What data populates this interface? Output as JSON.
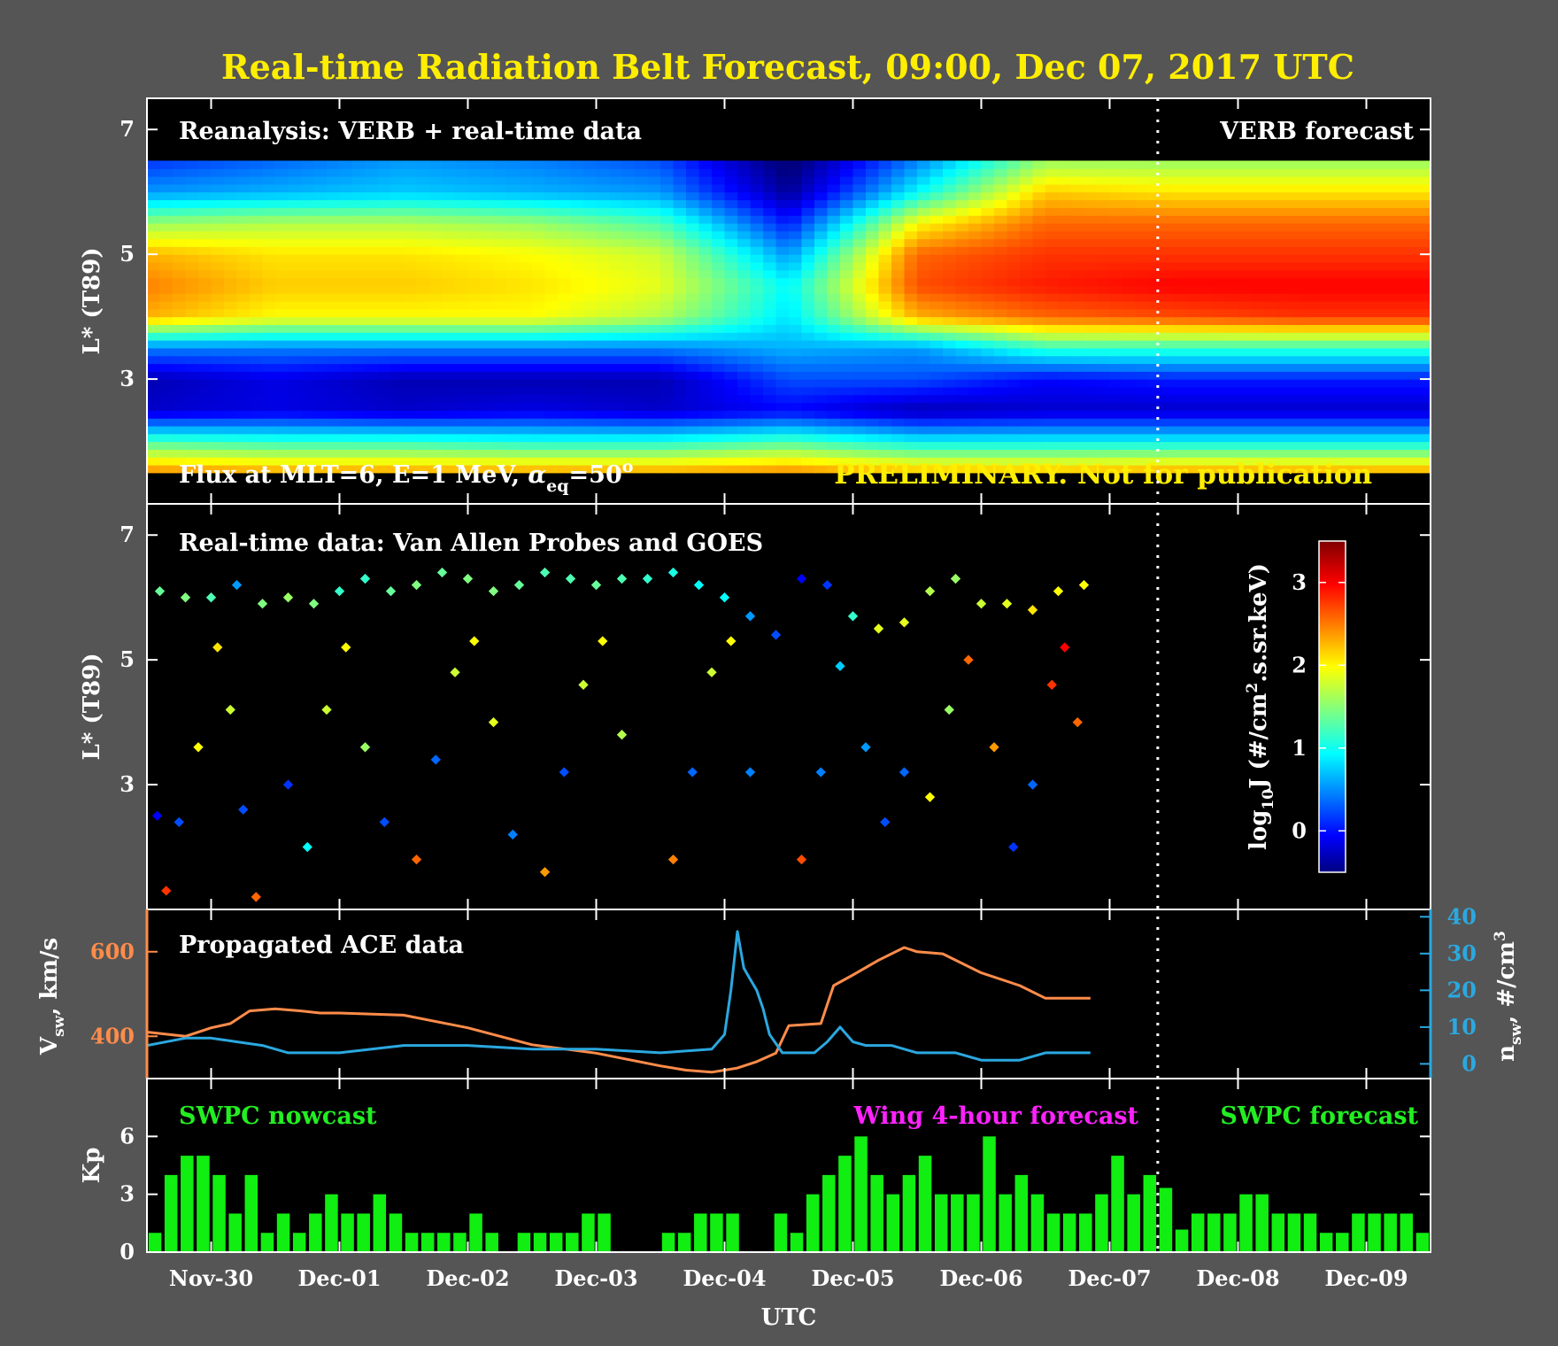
{
  "title": "Real-time Radiation Belt Forecast, 09:00, Dec 07, 2017 UTC",
  "colors": {
    "background": "#555555",
    "title": "#ffee00",
    "vsw": "#ff8c4a",
    "nsw": "#2ba8e0",
    "kp": "#11ee11",
    "wing": "#ff22ff",
    "prelim": "#ffee00"
  },
  "x_axis": {
    "label": "UTC",
    "ticks": [
      "Nov-30",
      "Dec-01",
      "Dec-02",
      "Dec-03",
      "Dec-04",
      "Dec-05",
      "Dec-06",
      "Dec-07",
      "Dec-08",
      "Dec-09"
    ],
    "range": [
      "2017-11-29T12:00",
      "2017-12-09T12:00"
    ],
    "now": "2017-12-07T09:00"
  },
  "panels": {
    "reanalysis": {
      "label": "Reanalysis: VERB + real-time data",
      "forecast_label": "VERB forecast",
      "flux_label": {
        "prefix": "Flux at MLT=6, E=1 MeV,  ",
        "symbol": "α",
        "sub": "eq",
        "value": "=50",
        "sup": "o"
      },
      "preliminary": "PRELIMINARY. Not for publication",
      "ylabel": "L* (T89)",
      "yticks": [
        "3",
        "5",
        "7"
      ],
      "ylim": [
        1.0,
        7.5
      ]
    },
    "realtime": {
      "label": "Real-time data: Van Allen Probes and GOES",
      "ylabel": "L* (T89)",
      "yticks": [
        "3",
        "5",
        "7"
      ],
      "ylim": [
        1.0,
        7.5
      ],
      "colorbar": {
        "label": {
          "a": "log",
          "a_sub": "10",
          "b": "J (#/cm",
          "b_sup": "2",
          "c": ".s.sr.keV)"
        },
        "ticks": [
          "0",
          "1",
          "2",
          "3"
        ],
        "range": [
          -0.5,
          3.5
        ]
      }
    },
    "ace": {
      "label": "Propagated ACE data",
      "left_label": {
        "a": "V",
        "sub": "sw",
        "b": ", km/s"
      },
      "right_label": {
        "a": "n",
        "sub": "sw",
        "b": ", #/cm",
        "sup": "3"
      },
      "left_ticks": [
        "400",
        "600"
      ],
      "right_ticks": [
        "0",
        "10",
        "20",
        "30",
        "40"
      ]
    },
    "kp": {
      "ylabel": "Kp",
      "yticks": [
        "0",
        "3",
        "6"
      ],
      "ylim": [
        0,
        9
      ],
      "nowcast_label": "SWPC nowcast",
      "wing_label": "Wing 4-hour forecast",
      "forecast_label": "SWPC forecast"
    }
  },
  "chart_data": [
    {
      "type": "heatmap",
      "name": "reanalysis",
      "x_range": [
        "2017-11-29T12:00",
        "2017-12-09T12:00"
      ],
      "ylim": [
        1.0,
        7.5
      ],
      "z_range": [
        -0.5,
        3.5
      ],
      "l_star_grid": [
        1.5,
        2.0,
        2.5,
        3.0,
        3.5,
        4.0,
        4.5,
        5.0,
        5.5,
        6.0,
        6.5
      ],
      "time_days": [
        0,
        1,
        2,
        3,
        4,
        5,
        6,
        7,
        8,
        9,
        10
      ],
      "log_flux": [
        [
          2.5,
          2.4,
          2.4,
          2.4,
          2.4,
          2.5,
          2.3,
          2.3,
          2.4,
          2.4,
          2.4
        ],
        [
          1.3,
          1.2,
          1.2,
          1.1,
          1.1,
          1.3,
          1.0,
          1.0,
          1.0,
          1.0,
          1.0
        ],
        [
          -0.2,
          -0.1,
          -0.2,
          -0.1,
          -0.2,
          0.0,
          -0.3,
          -0.2,
          -0.2,
          -0.2,
          -0.2
        ],
        [
          -0.3,
          -0.1,
          -0.3,
          -0.3,
          -0.3,
          0.3,
          0.3,
          0.0,
          0.1,
          0.1,
          0.1
        ],
        [
          0.5,
          0.5,
          0.5,
          0.5,
          0.5,
          0.7,
          0.6,
          1.2,
          1.2,
          1.2,
          1.2
        ],
        [
          2.3,
          2.0,
          2.0,
          2.0,
          1.7,
          0.9,
          2.3,
          2.6,
          2.7,
          2.8,
          2.8
        ],
        [
          2.5,
          2.2,
          2.2,
          2.1,
          1.9,
          1.0,
          2.7,
          2.9,
          3.0,
          3.0,
          3.0
        ],
        [
          2.3,
          2.1,
          2.1,
          2.0,
          1.8,
          0.6,
          2.6,
          2.8,
          2.8,
          2.8,
          2.8
        ],
        [
          1.6,
          1.7,
          1.7,
          1.6,
          1.3,
          0.1,
          2.0,
          2.6,
          2.6,
          2.6,
          2.6
        ],
        [
          0.6,
          0.7,
          0.8,
          0.7,
          0.6,
          -0.4,
          1.0,
          2.2,
          2.1,
          2.1,
          2.1
        ],
        [
          0.2,
          0.4,
          0.6,
          0.5,
          0.3,
          -0.6,
          0.5,
          1.6,
          1.6,
          1.6,
          1.6
        ]
      ]
    },
    {
      "type": "scatter",
      "name": "Van Allen Probes and GOES",
      "x_range": [
        "2017-11-29T12:00",
        "2017-12-09T12:00"
      ],
      "ylim": [
        1.0,
        7.5
      ],
      "z_range": [
        -0.5,
        3.5
      ],
      "goes": {
        "time_days": [
          0.1,
          0.3,
          0.5,
          0.7,
          0.9,
          1.1,
          1.3,
          1.5,
          1.7,
          1.9,
          2.1,
          2.3,
          2.5,
          2.7,
          2.9,
          3.1,
          3.3,
          3.5,
          3.7,
          3.9,
          4.1,
          4.3,
          4.5,
          4.7,
          4.9,
          5.1,
          5.3,
          5.5,
          5.7,
          5.9,
          6.1,
          6.3,
          6.5,
          6.7,
          6.9,
          7.1,
          7.3
        ],
        "l_star": [
          6.1,
          6.0,
          6.0,
          6.2,
          5.9,
          6.0,
          5.9,
          6.1,
          6.3,
          6.1,
          6.2,
          6.4,
          6.3,
          6.1,
          6.2,
          6.4,
          6.3,
          6.2,
          6.3,
          6.3,
          6.4,
          6.2,
          6.0,
          5.7,
          5.4,
          6.3,
          6.2,
          5.7,
          5.5,
          5.6,
          6.1,
          6.3,
          5.9,
          5.9,
          5.8,
          6.1,
          6.2
        ],
        "log_flux": [
          1.4,
          1.5,
          1.3,
          0.6,
          1.5,
          1.6,
          1.5,
          1.2,
          1.2,
          1.4,
          1.5,
          1.4,
          1.5,
          1.5,
          1.4,
          1.3,
          1.3,
          1.4,
          1.3,
          1.2,
          1.1,
          1.0,
          1.0,
          0.6,
          0.3,
          0.0,
          0.2,
          1.2,
          1.9,
          1.9,
          1.7,
          1.6,
          1.8,
          1.9,
          2.1,
          2.0,
          2.0
        ]
      },
      "probes": {
        "time_days": [
          0.08,
          0.15,
          0.25,
          0.4,
          0.55,
          0.65,
          0.75,
          0.85,
          1.1,
          1.25,
          1.4,
          1.55,
          1.7,
          1.85,
          2.1,
          2.25,
          2.4,
          2.55,
          2.7,
          2.85,
          3.1,
          3.25,
          3.4,
          3.55,
          3.7,
          4.1,
          4.25,
          4.4,
          4.55,
          4.7,
          5.1,
          5.25,
          5.4,
          5.6,
          5.75,
          5.9,
          6.1,
          6.25,
          6.4,
          6.6,
          6.75,
          6.9,
          7.05,
          7.15,
          7.25
        ],
        "l_star": [
          2.5,
          1.3,
          2.4,
          3.6,
          5.2,
          4.2,
          2.6,
          1.2,
          3.0,
          2.0,
          4.2,
          5.2,
          3.6,
          2.4,
          1.8,
          3.4,
          4.8,
          5.3,
          4.0,
          2.2,
          1.6,
          3.2,
          4.6,
          5.3,
          3.8,
          1.8,
          3.2,
          4.8,
          5.3,
          3.2,
          1.8,
          3.2,
          4.9,
          3.6,
          2.4,
          3.2,
          2.8,
          4.2,
          5.0,
          3.6,
          2.0,
          3.0,
          4.6,
          5.2,
          4.0
        ],
        "log_flux": [
          0.0,
          2.8,
          0.3,
          2.0,
          2.1,
          1.8,
          0.3,
          2.6,
          0.2,
          1.0,
          1.8,
          2.0,
          1.6,
          0.3,
          2.6,
          0.4,
          1.8,
          2.0,
          1.9,
          0.5,
          2.4,
          0.3,
          1.8,
          2.0,
          1.7,
          2.5,
          0.4,
          1.8,
          2.0,
          0.5,
          2.7,
          0.5,
          0.8,
          0.6,
          0.3,
          0.4,
          2.0,
          1.6,
          2.6,
          2.4,
          0.2,
          0.4,
          2.8,
          3.0,
          2.6
        ]
      }
    },
    {
      "type": "line",
      "name": "Propagated ACE data",
      "x_range": [
        "2017-11-29T12:00",
        "2017-12-09T12:00"
      ],
      "series": [
        {
          "name": "V_sw",
          "axis": "left",
          "ylim": [
            300,
            700
          ],
          "time_days": [
            0.0,
            0.3,
            0.5,
            0.65,
            0.8,
            1.0,
            1.2,
            1.35,
            1.5,
            2.0,
            2.5,
            3.0,
            3.5,
            4.0,
            4.2,
            4.4,
            4.6,
            4.75,
            4.9,
            5.0,
            5.25,
            5.35,
            5.5,
            5.7,
            5.9,
            6.0,
            6.2,
            6.5,
            6.8,
            7.0,
            7.35
          ],
          "values": [
            410,
            400,
            420,
            430,
            460,
            465,
            460,
            455,
            455,
            450,
            420,
            380,
            360,
            330,
            320,
            315,
            325,
            340,
            360,
            425,
            430,
            520,
            545,
            580,
            610,
            600,
            595,
            550,
            520,
            490,
            490
          ]
        },
        {
          "name": "n_sw",
          "axis": "right",
          "ylim": [
            -4,
            42
          ],
          "time_days": [
            0.0,
            0.3,
            0.5,
            0.7,
            0.9,
            1.1,
            1.3,
            1.5,
            2.0,
            2.5,
            3.0,
            3.5,
            4.0,
            4.4,
            4.5,
            4.55,
            4.6,
            4.65,
            4.7,
            4.75,
            4.8,
            4.85,
            4.95,
            5.0,
            5.2,
            5.3,
            5.4,
            5.5,
            5.6,
            5.8,
            6.0,
            6.3,
            6.5,
            6.8,
            7.0,
            7.35
          ],
          "values": [
            5,
            7,
            7,
            6,
            5,
            3,
            3,
            3,
            5,
            5,
            4,
            4,
            3,
            4,
            8,
            20,
            36,
            26,
            23,
            20,
            15,
            8,
            3,
            3,
            3,
            6,
            10,
            6,
            5,
            5,
            3,
            3,
            1,
            1,
            3,
            3
          ]
        }
      ]
    },
    {
      "type": "bar",
      "name": "Kp",
      "ylim": [
        0,
        9
      ],
      "bar_width_hours": 3,
      "start": "2017-11-29T12:00",
      "nowcast_values": [
        1,
        4,
        5,
        5,
        4,
        2,
        4,
        1,
        2,
        1,
        2,
        3,
        2,
        2,
        3,
        2,
        1,
        1,
        1,
        1,
        2,
        1,
        0,
        1,
        1,
        1,
        1,
        2,
        2,
        0,
        0,
        0,
        1,
        1,
        2,
        2,
        2,
        0,
        0,
        2,
        1,
        3,
        4,
        5,
        6,
        4,
        3,
        4,
        5,
        3,
        3,
        3,
        6,
        3,
        4,
        3,
        2,
        2,
        2,
        3,
        5,
        3,
        4,
        3.33
      ],
      "forecast_values": [
        1.17,
        2,
        2,
        2,
        3,
        3,
        2,
        2,
        2,
        1,
        1,
        2,
        2,
        2,
        2,
        1
      ]
    }
  ]
}
